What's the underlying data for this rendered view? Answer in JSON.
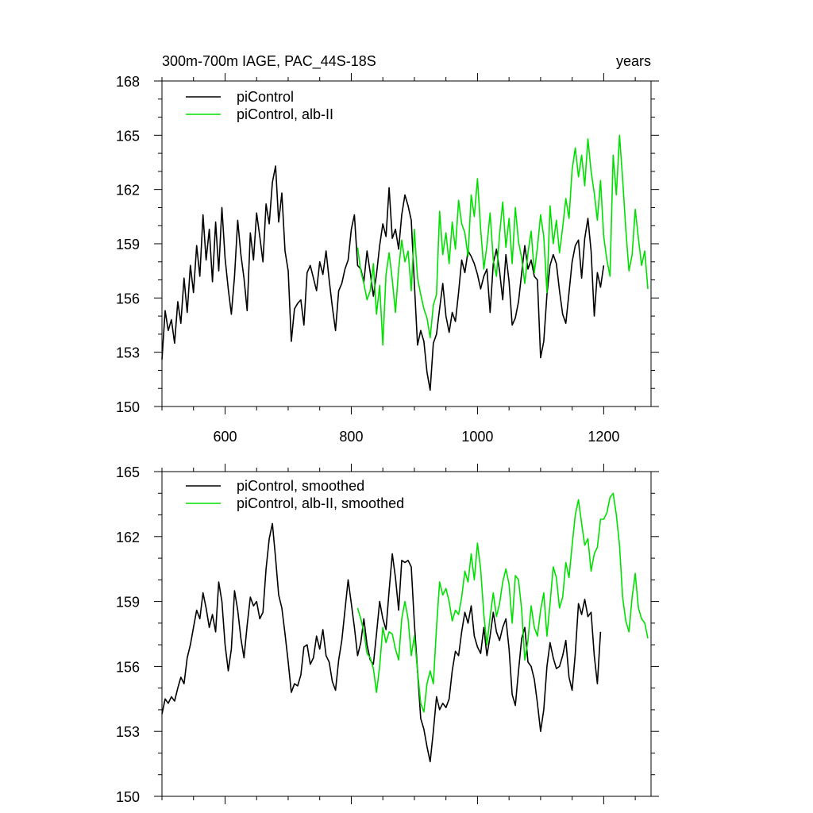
{
  "figure": {
    "title_left": "300m-700m IAGE, PAC_44S-18S",
    "title_right": "years"
  },
  "colors": {
    "piControl": "#000000",
    "alb": "#00e000"
  },
  "chart_data": [
    {
      "type": "line",
      "title": "300m-700m IAGE, PAC_44S-18S",
      "units": "years",
      "xlim": [
        500,
        1275
      ],
      "ylim": [
        150,
        168
      ],
      "x_ticks": [
        600,
        800,
        1000,
        1200
      ],
      "x_tick_labels": [
        "600",
        "800",
        "1000",
        "1200"
      ],
      "y_ticks": [
        150,
        153,
        156,
        159,
        162,
        165,
        168
      ],
      "y_tick_labels": [
        "150",
        "153",
        "156",
        "159",
        "162",
        "165",
        "168"
      ],
      "legend": [
        "piControl",
        "piControl, alb-II"
      ],
      "series": [
        {
          "name": "piControl",
          "color": "#000000",
          "x": [
            500,
            505,
            510,
            515,
            520,
            525,
            530,
            535,
            540,
            545,
            550,
            555,
            560,
            565,
            570,
            575,
            580,
            585,
            590,
            595,
            600,
            605,
            610,
            615,
            620,
            625,
            630,
            635,
            640,
            645,
            650,
            655,
            660,
            665,
            670,
            675,
            680,
            685,
            690,
            695,
            700,
            705,
            710,
            715,
            720,
            725,
            730,
            735,
            740,
            745,
            750,
            755,
            760,
            765,
            770,
            775,
            780,
            785,
            790,
            795,
            800,
            805,
            810,
            815,
            820,
            825,
            830,
            835,
            840,
            845,
            850,
            855,
            860,
            865,
            870,
            875,
            880,
            885,
            890,
            895,
            900,
            905,
            910,
            915,
            920,
            925,
            930,
            935,
            940,
            945,
            950,
            955,
            960,
            965,
            970,
            975,
            980,
            985,
            990,
            995,
            1000,
            1005,
            1010,
            1015,
            1020,
            1025,
            1030,
            1035,
            1040,
            1045,
            1050,
            1055,
            1060,
            1065,
            1070,
            1075,
            1080,
            1085,
            1090,
            1095,
            1100,
            1105,
            1110,
            1115,
            1120,
            1125,
            1130,
            1135,
            1140,
            1145,
            1150,
            1155,
            1160,
            1165,
            1170,
            1175,
            1180,
            1185,
            1190,
            1195,
            1200
          ],
          "y": [
            152.6,
            155.3,
            154.2,
            154.8,
            153.5,
            155.8,
            154.6,
            157.1,
            155.2,
            157.8,
            156.3,
            158.9,
            157.2,
            160.6,
            158.1,
            159.8,
            156.9,
            160.2,
            157.5,
            161.0,
            158.2,
            156.5,
            155.1,
            157.2,
            160.3,
            158.4,
            157.1,
            155.3,
            159.6,
            158.1,
            160.7,
            159.4,
            158.0,
            161.2,
            160.1,
            162.4,
            163.3,
            160.2,
            161.8,
            158.6,
            157.5,
            153.6,
            155.4,
            155.7,
            155.9,
            154.5,
            157.4,
            157.8,
            157.1,
            156.4,
            158.0,
            157.3,
            158.6,
            157.0,
            155.5,
            154.2,
            156.4,
            156.8,
            157.6,
            158.1,
            159.8,
            160.6,
            157.8,
            157.6,
            156.9,
            158.6,
            157.4,
            156.1,
            157.3,
            158.9,
            160.1,
            159.4,
            162.1,
            159.3,
            159.8,
            158.7,
            160.6,
            161.7,
            161.1,
            160.3,
            156.8,
            153.4,
            154.2,
            153.6,
            151.9,
            150.9,
            153.5,
            154.0,
            155.4,
            156.8,
            155.0,
            154.1,
            155.2,
            154.7,
            156.3,
            158.1,
            157.4,
            158.6,
            158.3,
            157.9,
            157.3,
            156.5,
            157.2,
            157.6,
            155.2,
            157.9,
            158.7,
            157.5,
            155.9,
            158.4,
            156.9,
            154.5,
            154.9,
            155.8,
            157.4,
            158.9,
            157.6,
            158.1,
            157.2,
            157.0,
            152.7,
            153.6,
            156.2,
            157.8,
            158.4,
            157.9,
            156.4,
            155.1,
            154.6,
            156.3,
            158.0,
            158.9,
            159.2,
            157.1,
            159.3,
            160.4,
            158.6,
            155.0,
            157.4,
            156.6,
            157.8
          ]
        },
        {
          "name": "piControl, alb-II",
          "color": "#00e000",
          "x": [
            810,
            815,
            820,
            825,
            830,
            835,
            840,
            845,
            850,
            855,
            860,
            865,
            870,
            875,
            880,
            885,
            890,
            895,
            900,
            905,
            910,
            915,
            920,
            925,
            930,
            935,
            940,
            945,
            950,
            955,
            960,
            965,
            970,
            975,
            980,
            985,
            990,
            995,
            1000,
            1005,
            1010,
            1015,
            1020,
            1025,
            1030,
            1035,
            1040,
            1045,
            1050,
            1055,
            1060,
            1065,
            1070,
            1075,
            1080,
            1085,
            1090,
            1095,
            1100,
            1105,
            1110,
            1115,
            1120,
            1125,
            1130,
            1135,
            1140,
            1145,
            1150,
            1155,
            1160,
            1165,
            1170,
            1175,
            1180,
            1185,
            1190,
            1195,
            1200,
            1205,
            1210,
            1215,
            1220,
            1225,
            1230,
            1235,
            1240,
            1245,
            1250,
            1255,
            1260,
            1265,
            1270
          ],
          "y": [
            158.8,
            157.5,
            156.8,
            155.9,
            156.4,
            157.9,
            155.1,
            156.7,
            153.4,
            157.3,
            158.5,
            157.0,
            155.2,
            157.6,
            159.2,
            158.0,
            158.6,
            156.4,
            159.8,
            157.1,
            156.2,
            155.4,
            154.9,
            153.8,
            155.6,
            156.2,
            160.8,
            158.4,
            159.6,
            157.9,
            160.2,
            158.7,
            161.4,
            160.1,
            159.6,
            158.3,
            161.7,
            160.5,
            162.6,
            159.8,
            157.6,
            158.9,
            160.7,
            158.1,
            157.2,
            159.5,
            161.3,
            158.8,
            160.4,
            157.9,
            161.0,
            159.1,
            158.2,
            156.8,
            158.5,
            159.7,
            157.4,
            158.8,
            160.6,
            159.4,
            156.3,
            161.1,
            159.0,
            160.3,
            158.5,
            159.9,
            161.5,
            160.4,
            163.1,
            164.3,
            162.7,
            163.9,
            162.2,
            164.8,
            163.0,
            161.8,
            160.3,
            162.5,
            159.4,
            158.1,
            157.2,
            163.9,
            161.7,
            165.0,
            162.6,
            159.8,
            157.5,
            158.4,
            160.9,
            159.3,
            157.8,
            158.6,
            156.5
          ]
        }
      ]
    },
    {
      "type": "line",
      "title": "",
      "xlim": [
        500,
        1275
      ],
      "ylim": [
        150,
        165
      ],
      "x_ticks": [
        600,
        800,
        1000,
        1200
      ],
      "y_ticks": [
        150,
        153,
        156,
        159,
        162,
        165
      ],
      "y_tick_labels": [
        "150",
        "153",
        "156",
        "159",
        "162",
        "165"
      ],
      "legend": [
        "piControl, smoothed",
        "piControl, alb-II, smoothed"
      ],
      "series": [
        {
          "name": "piControl, smoothed",
          "color": "#000000",
          "x": [
            500,
            505,
            510,
            515,
            520,
            525,
            530,
            535,
            540,
            545,
            550,
            555,
            560,
            565,
            570,
            575,
            580,
            585,
            590,
            595,
            600,
            605,
            610,
            615,
            620,
            625,
            630,
            635,
            640,
            645,
            650,
            655,
            660,
            665,
            670,
            675,
            680,
            685,
            690,
            695,
            700,
            705,
            710,
            715,
            720,
            725,
            730,
            735,
            740,
            745,
            750,
            755,
            760,
            765,
            770,
            775,
            780,
            785,
            790,
            795,
            800,
            805,
            810,
            815,
            820,
            825,
            830,
            835,
            840,
            845,
            850,
            855,
            860,
            865,
            870,
            875,
            880,
            885,
            890,
            895,
            900,
            905,
            910,
            915,
            920,
            925,
            930,
            935,
            940,
            945,
            950,
            955,
            960,
            965,
            970,
            975,
            980,
            985,
            990,
            995,
            1000,
            1005,
            1010,
            1015,
            1020,
            1025,
            1030,
            1035,
            1040,
            1045,
            1050,
            1055,
            1060,
            1065,
            1070,
            1075,
            1080,
            1085,
            1090,
            1095,
            1100,
            1105,
            1110,
            1115,
            1120,
            1125,
            1130,
            1135,
            1140,
            1145,
            1150,
            1155,
            1160,
            1165,
            1170,
            1175,
            1180,
            1185,
            1190,
            1195
          ],
          "y": [
            153.8,
            154.5,
            154.3,
            154.6,
            154.4,
            155.0,
            155.5,
            155.2,
            156.4,
            157.0,
            157.8,
            158.6,
            158.2,
            159.4,
            158.7,
            157.8,
            158.4,
            157.6,
            159.9,
            159.0,
            157.0,
            155.8,
            156.8,
            159.5,
            158.6,
            157.3,
            156.4,
            157.9,
            159.2,
            158.8,
            159.0,
            158.2,
            158.5,
            160.5,
            161.9,
            162.6,
            161.0,
            159.3,
            158.7,
            157.5,
            156.2,
            154.8,
            155.2,
            155.1,
            155.6,
            156.9,
            157.0,
            156.1,
            156.4,
            157.4,
            156.8,
            157.7,
            156.5,
            156.2,
            155.3,
            154.9,
            156.3,
            157.2,
            158.6,
            160.0,
            158.9,
            157.8,
            156.5,
            157.1,
            158.2,
            157.0,
            156.3,
            156.1,
            157.5,
            159.0,
            158.2,
            157.7,
            159.5,
            161.2,
            160.1,
            158.6,
            160.9,
            160.8,
            160.9,
            160.6,
            158.0,
            155.8,
            153.6,
            153.1,
            152.3,
            151.6,
            153.0,
            154.6,
            154.0,
            154.3,
            154.1,
            154.5,
            155.8,
            156.7,
            156.5,
            157.6,
            158.5,
            158.0,
            158.8,
            157.4,
            156.9,
            156.6,
            157.8,
            156.5,
            157.4,
            158.5,
            157.6,
            157.2,
            157.8,
            158.2,
            156.8,
            154.7,
            154.2,
            155.8,
            157.3,
            157.8,
            156.2,
            156.0,
            155.4,
            154.3,
            153.0,
            154.0,
            156.0,
            157.1,
            156.4,
            155.9,
            156.0,
            156.5,
            157.2,
            155.5,
            154.9,
            156.6,
            158.9,
            158.4,
            159.1,
            158.3,
            158.5,
            156.5,
            155.2,
            157.6
          ]
        },
        {
          "name": "piControl, alb-II, smoothed",
          "color": "#00e000",
          "x": [
            810,
            815,
            820,
            825,
            830,
            835,
            840,
            845,
            850,
            855,
            860,
            865,
            870,
            875,
            880,
            885,
            890,
            895,
            900,
            905,
            910,
            915,
            920,
            925,
            930,
            935,
            940,
            945,
            950,
            955,
            960,
            965,
            970,
            975,
            980,
            985,
            990,
            995,
            1000,
            1005,
            1010,
            1015,
            1020,
            1025,
            1030,
            1035,
            1040,
            1045,
            1050,
            1055,
            1060,
            1065,
            1070,
            1075,
            1080,
            1085,
            1090,
            1095,
            1100,
            1105,
            1110,
            1115,
            1120,
            1125,
            1130,
            1135,
            1140,
            1145,
            1150,
            1155,
            1160,
            1165,
            1170,
            1175,
            1180,
            1185,
            1190,
            1195,
            1200,
            1205,
            1210,
            1215,
            1220,
            1225,
            1230,
            1235,
            1240,
            1245,
            1250,
            1255,
            1260,
            1265,
            1270
          ],
          "y": [
            158.7,
            158.2,
            157.6,
            156.6,
            156.4,
            155.9,
            154.8,
            156.0,
            157.8,
            157.1,
            157.6,
            157.5,
            156.8,
            156.3,
            158.2,
            159.0,
            158.2,
            156.5,
            157.4,
            155.8,
            154.3,
            153.9,
            155.2,
            155.8,
            155.2,
            157.8,
            159.9,
            159.3,
            159.6,
            159.0,
            158.1,
            158.6,
            158.4,
            159.2,
            160.4,
            159.9,
            161.2,
            160.0,
            161.7,
            160.5,
            158.4,
            157.0,
            158.3,
            159.4,
            158.3,
            158.9,
            159.9,
            160.5,
            159.8,
            158.0,
            160.2,
            160.0,
            158.6,
            156.3,
            157.2,
            158.8,
            157.8,
            157.4,
            158.6,
            159.4,
            157.4,
            158.9,
            160.6,
            160.1,
            158.7,
            159.2,
            160.8,
            160.1,
            161.6,
            163.0,
            163.7,
            162.6,
            161.6,
            161.9,
            160.4,
            161.2,
            161.5,
            162.8,
            162.8,
            163.1,
            163.8,
            164.0,
            163.0,
            161.6,
            159.2,
            158.1,
            157.6,
            159.2,
            160.3,
            158.7,
            158.2,
            158.0,
            157.3
          ]
        }
      ]
    }
  ]
}
